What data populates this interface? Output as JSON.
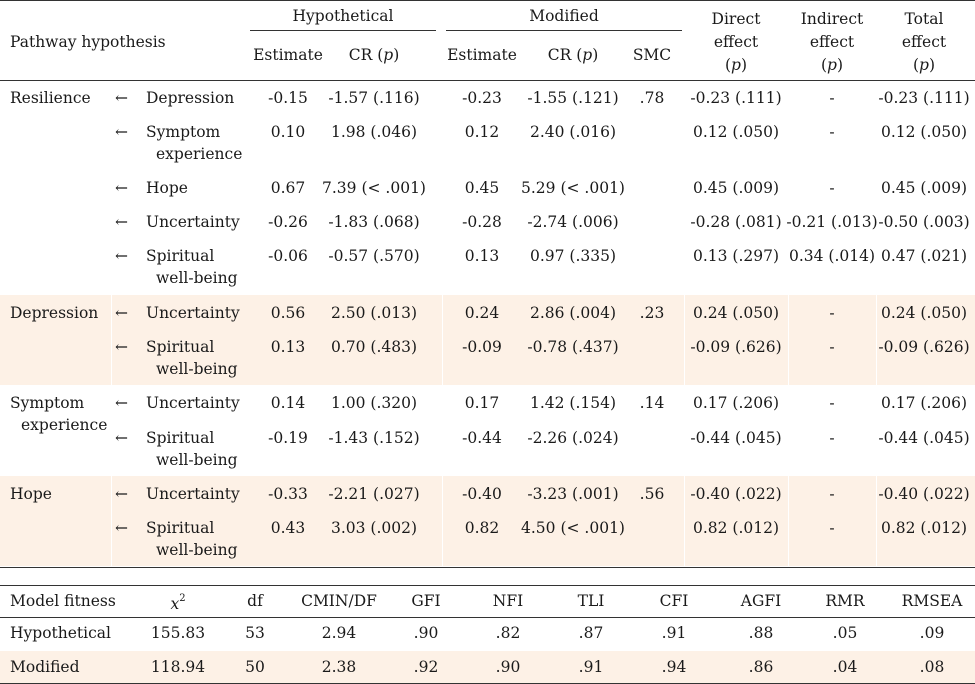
{
  "header": {
    "pathway_hypothesis": "Pathway hypothesis",
    "hypothetical": "Hypothetical",
    "modified": "Modified",
    "estimate": "Estimate",
    "cr_p_prefix": "CR (",
    "p": "p",
    "cr_p_suffix": ")",
    "smc": "SMC",
    "direct_1": "Direct",
    "effect": "effect",
    "indirect_1": "Indirect",
    "total_1": "Total",
    "paren_open": "(",
    "paren_close": ")"
  },
  "arrow": "←",
  "groups": [
    {
      "outcome": [
        "Resilience"
      ],
      "band": false,
      "rows": [
        {
          "pred": [
            "Depression"
          ],
          "h_est": "-0.15",
          "h_cr": "-1.57 (.116)",
          "m_est": "-0.23",
          "m_cr": "-1.55 (.121)",
          "smc": ".78",
          "direct": "-0.23 (.111)",
          "indirect": "-",
          "total": "-0.23 (.111)"
        },
        {
          "pred": [
            "Symptom",
            "experience"
          ],
          "h_est": "0.10",
          "h_cr": "1.98 (.046)",
          "m_est": "0.12",
          "m_cr": "2.40 (.016)",
          "smc": "",
          "direct": "0.12 (.050)",
          "indirect": "-",
          "total": "0.12 (.050)"
        },
        {
          "pred": [
            "Hope"
          ],
          "h_est": "0.67",
          "h_cr": "7.39 (< .001)",
          "m_est": "0.45",
          "m_cr": "5.29 (< .001)",
          "smc": "",
          "direct": "0.45 (.009)",
          "indirect": "-",
          "total": "0.45 (.009)"
        },
        {
          "pred": [
            "Uncertainty"
          ],
          "h_est": "-0.26",
          "h_cr": "-1.83 (.068)",
          "m_est": "-0.28",
          "m_cr": "-2.74 (.006)",
          "smc": "",
          "direct": "-0.28 (.081)",
          "indirect": "-0.21 (.013)",
          "total": "-0.50 (.003)"
        },
        {
          "pred": [
            "Spiritual",
            "well-being"
          ],
          "h_est": "-0.06",
          "h_cr": "-0.57 (.570)",
          "m_est": "0.13",
          "m_cr": "0.97 (.335)",
          "smc": "",
          "direct": "0.13 (.297)",
          "indirect": "0.34 (.014)",
          "total": "0.47 (.021)"
        }
      ]
    },
    {
      "outcome": [
        "Depression"
      ],
      "band": true,
      "rows": [
        {
          "pred": [
            "Uncertainty"
          ],
          "h_est": "0.56",
          "h_cr": "2.50 (.013)",
          "m_est": "0.24",
          "m_cr": "2.86 (.004)",
          "smc": ".23",
          "direct": "0.24 (.050)",
          "indirect": "-",
          "total": "0.24 (.050)"
        },
        {
          "pred": [
            "Spiritual",
            "well-being"
          ],
          "h_est": "0.13",
          "h_cr": "0.70 (.483)",
          "m_est": "-0.09",
          "m_cr": "-0.78 (.437)",
          "smc": "",
          "direct": "-0.09 (.626)",
          "indirect": "-",
          "total": "-0.09 (.626)"
        }
      ]
    },
    {
      "outcome": [
        "Symptom",
        "experience"
      ],
      "band": false,
      "rows": [
        {
          "pred": [
            "Uncertainty"
          ],
          "h_est": "0.14",
          "h_cr": "1.00 (.320)",
          "m_est": "0.17",
          "m_cr": "1.42 (.154)",
          "smc": ".14",
          "direct": "0.17 (.206)",
          "indirect": "-",
          "total": "0.17 (.206)"
        },
        {
          "pred": [
            "Spiritual",
            "well-being"
          ],
          "h_est": "-0.19",
          "h_cr": "-1.43 (.152)",
          "m_est": "-0.44",
          "m_cr": "-2.26 (.024)",
          "smc": "",
          "direct": "-0.44 (.045)",
          "indirect": "-",
          "total": "-0.44 (.045)"
        }
      ]
    },
    {
      "outcome": [
        "Hope"
      ],
      "band": true,
      "rows": [
        {
          "pred": [
            "Uncertainty"
          ],
          "h_est": "-0.33",
          "h_cr": "-2.21 (.027)",
          "m_est": "-0.40",
          "m_cr": "-3.23 (.001)",
          "smc": ".56",
          "direct": "-0.40 (.022)",
          "indirect": "-",
          "total": "-0.40 (.022)"
        },
        {
          "pred": [
            "Spiritual",
            "well-being"
          ],
          "h_est": "0.43",
          "h_cr": "3.03 (.002)",
          "m_est": "0.82",
          "m_cr": "4.50 (< .001)",
          "smc": "",
          "direct": "0.82 (.012)",
          "indirect": "-",
          "total": "0.82 (.012)"
        }
      ]
    }
  ],
  "fitness": {
    "headers": [
      "Model fitness",
      "x",
      "df",
      "CMIN/DF",
      "GFI",
      "NFI",
      "TLI",
      "CFI",
      "AGFI",
      "RMR",
      "RMSEA"
    ],
    "chi_sup": "2",
    "rows": [
      {
        "label": "Hypothetical",
        "values": [
          "155.83",
          "53",
          "2.94",
          ".90",
          ".82",
          ".87",
          ".91",
          ".88",
          ".05",
          ".09"
        ],
        "band": false
      },
      {
        "label": "Modified",
        "values": [
          "118.94",
          "50",
          "2.38",
          ".92",
          ".90",
          ".91",
          ".94",
          ".86",
          ".04",
          ".08"
        ],
        "band": true
      }
    ]
  },
  "colors": {
    "band": "#fdf1e6",
    "rule": "#333333",
    "text": "#1a1a1a"
  }
}
